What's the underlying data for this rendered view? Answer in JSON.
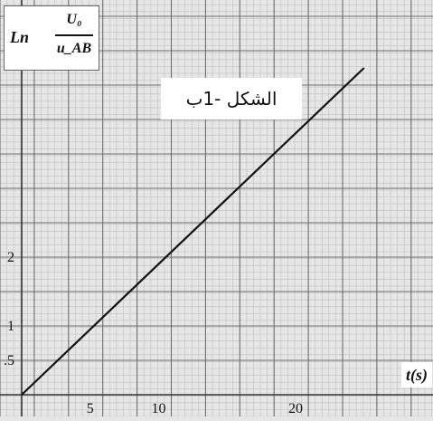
{
  "chart_data": {
    "type": "line",
    "y_label": {
      "lhs": "Ln",
      "numerator": "U₀",
      "denominator": "u_AB"
    },
    "x_label": "t(s)",
    "figure_label": "الشكل -1ب",
    "x_ticks": [
      5,
      10,
      20
    ],
    "y_ticks": [
      ".5",
      "1",
      "2"
    ],
    "x_range": [
      0,
      26
    ],
    "y_range": [
      0,
      5
    ],
    "grid": true,
    "series": [
      {
        "values": [
          [
            0,
            0
          ],
          [
            25,
            4.75
          ]
        ]
      }
    ]
  },
  "colors": {
    "background": "#e6e6e6",
    "grid_major": "#6e6e6e",
    "grid_minor": "#c4c4c4",
    "line": "#111111"
  }
}
